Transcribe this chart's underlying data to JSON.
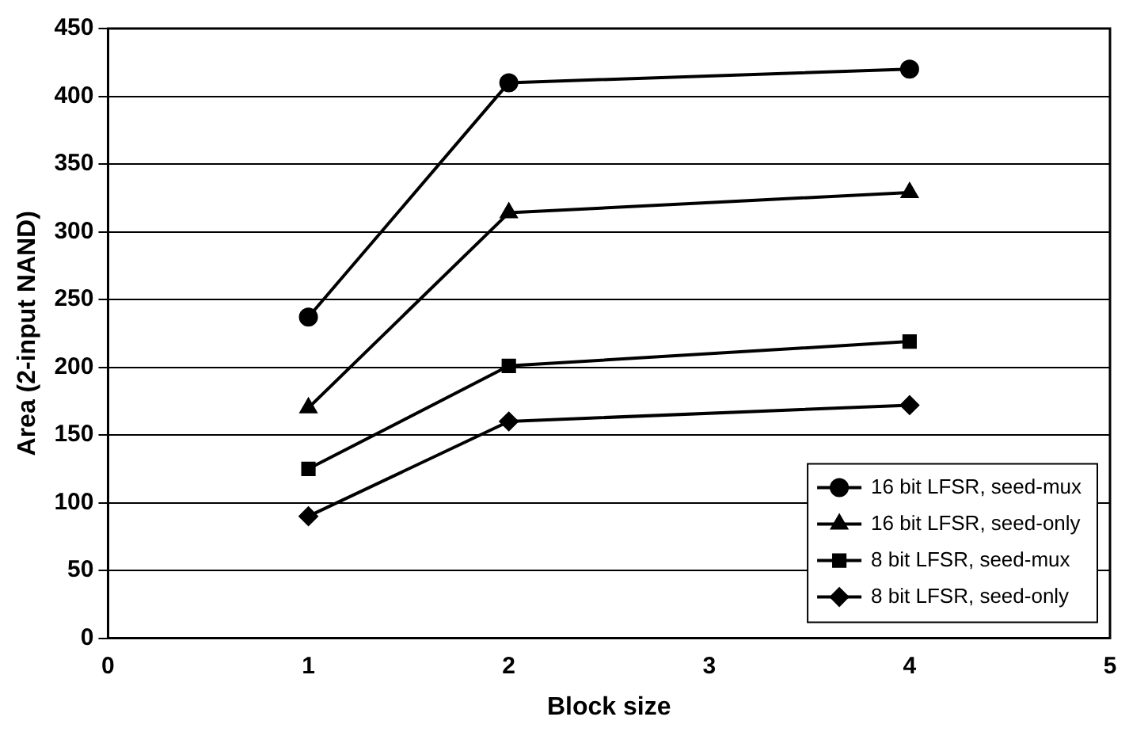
{
  "chart_data": {
    "type": "line",
    "xlabel": "Block size",
    "ylabel": "Area (2-input NAND)",
    "x": [
      1,
      2,
      4
    ],
    "series": [
      {
        "name": "16 bit LFSR, seed-mux",
        "color": "#000000",
        "marker": "circle",
        "values": [
          237,
          410,
          420
        ]
      },
      {
        "name": "16 bit LFSR, seed-only",
        "color": "#000000",
        "marker": "triangle",
        "values": [
          170,
          314,
          329
        ]
      },
      {
        "name": "8 bit LFSR, seed-mux",
        "color": "#000000",
        "marker": "square",
        "values": [
          125,
          201,
          219
        ]
      },
      {
        "name": "8 bit LFSR, seed-only",
        "color": "#000000",
        "marker": "diamond",
        "values": [
          90,
          160,
          172
        ]
      }
    ],
    "xlim": [
      0,
      5
    ],
    "xticks": [
      0,
      1,
      2,
      3,
      4,
      5
    ],
    "ylim": [
      0,
      450
    ],
    "yticks": [
      0,
      50,
      100,
      150,
      200,
      250,
      300,
      350,
      400,
      450
    ],
    "grid": "y",
    "legend": "bottom right",
    "line_style": "solid"
  }
}
